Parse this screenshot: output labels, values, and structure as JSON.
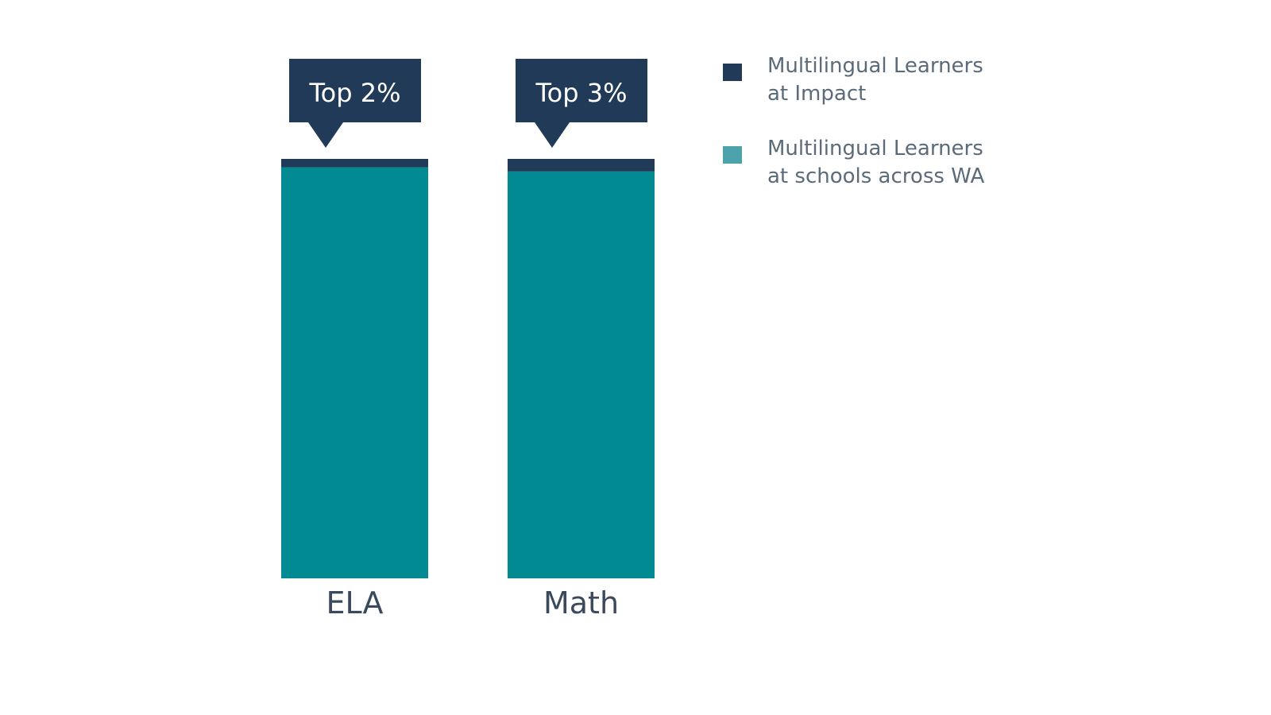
{
  "colors": {
    "impact": "#213a57",
    "wa": "#028a93",
    "wa_legend": "#4ca3ac",
    "label_text": "#3a4a5c"
  },
  "legend": {
    "items": [
      {
        "label": "Multilingual Learners at Impact",
        "swatch_color": "#213a57"
      },
      {
        "label": "Multilingual Learners at schools across WA",
        "swatch_color": "#4ca3ac"
      }
    ]
  },
  "chart_data": {
    "type": "bar",
    "stacked": true,
    "categories": [
      "ELA",
      "Math"
    ],
    "series": [
      {
        "name": "Multilingual Learners at Impact",
        "values": [
          2,
          3
        ]
      },
      {
        "name": "Multilingual Learners at schools across WA",
        "values": [
          98,
          97
        ]
      }
    ],
    "callouts": [
      "Top 2%",
      "Top 3%"
    ],
    "ylim": [
      0,
      100
    ],
    "grid": false,
    "legend_position": "top-right"
  }
}
